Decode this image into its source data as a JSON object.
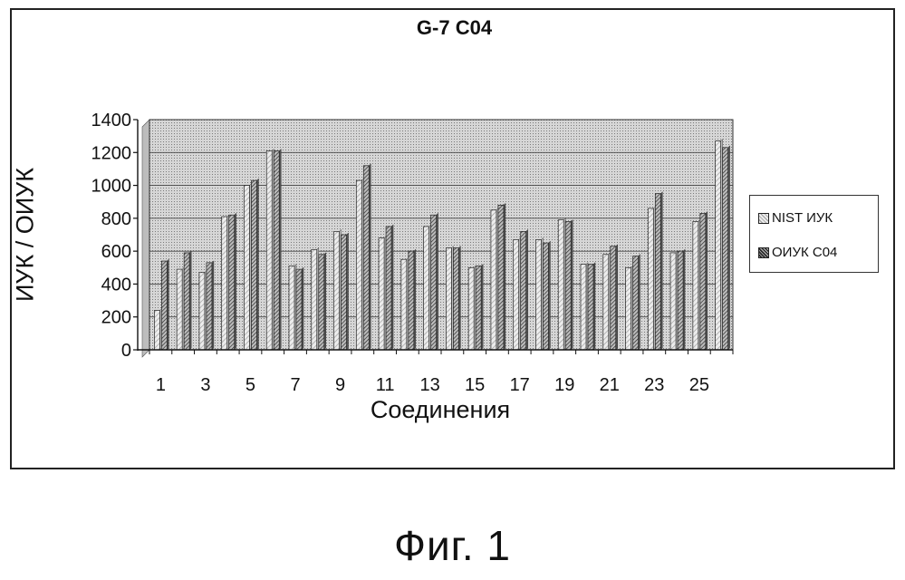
{
  "figure_caption": "Фиг. 1",
  "chart_data": {
    "type": "bar",
    "title": "G-7 C04",
    "xlabel": "Соединения",
    "ylabel": "ИУК / ОИУК",
    "ylim": [
      0,
      1400
    ],
    "yticks": [
      0,
      200,
      400,
      600,
      800,
      1000,
      1200,
      1400
    ],
    "categories": [
      "1",
      "2",
      "3",
      "4",
      "5",
      "6",
      "7",
      "8",
      "9",
      "10",
      "11",
      "12",
      "13",
      "14",
      "15",
      "16",
      "17",
      "18",
      "19",
      "20",
      "21",
      "22",
      "23",
      "24",
      "25",
      "26"
    ],
    "category_tick_labels": [
      "1",
      "",
      "3",
      "",
      "5",
      "",
      "7",
      "",
      "9",
      "",
      "11",
      "",
      "13",
      "",
      "15",
      "",
      "17",
      "",
      "19",
      "",
      "21",
      "",
      "23",
      "",
      "25",
      ""
    ],
    "grid": true,
    "legend_position": "right",
    "series": [
      {
        "name": "NIST ИУК",
        "values": [
          240,
          490,
          470,
          810,
          1000,
          1210,
          510,
          610,
          720,
          1030,
          680,
          550,
          750,
          620,
          500,
          850,
          670,
          670,
          790,
          520,
          580,
          500,
          860,
          590,
          780,
          1270
        ]
      },
      {
        "name": "ОИУК C04",
        "values": [
          540,
          590,
          530,
          820,
          1030,
          1210,
          490,
          580,
          700,
          1120,
          750,
          600,
          820,
          620,
          510,
          880,
          720,
          650,
          780,
          520,
          630,
          570,
          950,
          600,
          830,
          1230
        ]
      }
    ]
  }
}
